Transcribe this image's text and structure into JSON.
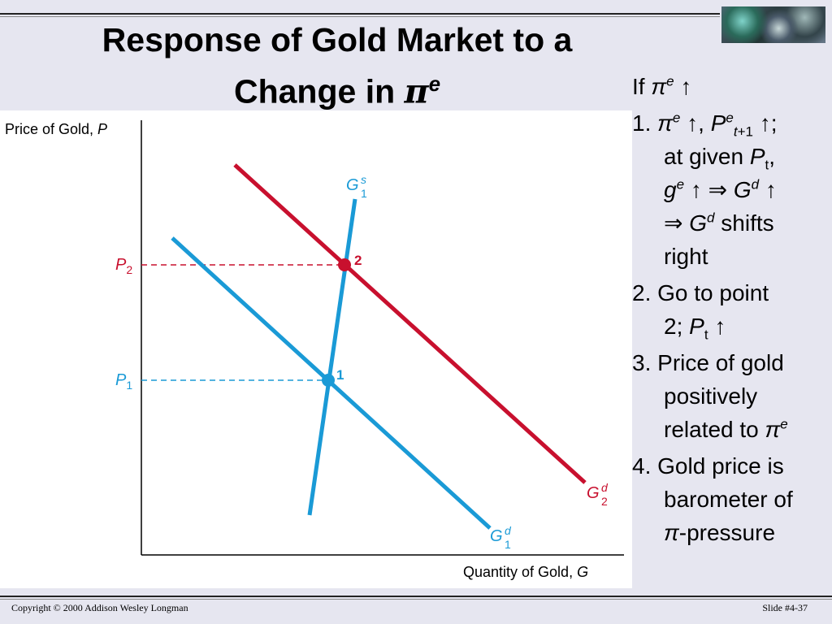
{
  "title": {
    "line1": "Response of Gold Market to a",
    "line2_text": "Change in ",
    "pi": "π",
    "sup": "e"
  },
  "diagram": {
    "y_axis_label": "Price of Gold, ",
    "y_axis_var": "P",
    "x_axis_label": "Quantity of Gold, ",
    "x_axis_var": "G",
    "supply_curve": {
      "base": "G",
      "sup": "s",
      "sub": "1"
    },
    "demand_curve_1": {
      "base": "G",
      "sup": "d",
      "sub": "1"
    },
    "demand_curve_2": {
      "base": "G",
      "sup": "d",
      "sub": "2"
    },
    "price_1": {
      "base": "P",
      "sub": "1"
    },
    "price_2": {
      "base": "P",
      "sub": "2"
    },
    "point_1_label": "1",
    "point_2_label": "2",
    "colors": {
      "blue": "#1a9ad6",
      "red": "#c8102e"
    }
  },
  "notes": {
    "intro_if": "If ",
    "intro_pi": "π",
    "intro_sup": "e",
    "intro_arrow": " ↑",
    "item1_num": "1.",
    "item1_pi": "π",
    "item1_sup_e": "e",
    "item1_arrow_comma": " ↑, ",
    "item1_P": "P",
    "item1_sup_e2": "e",
    "item1_sub_t1": "t",
    "item1_sub_plus1": "+1",
    "item1_arrow_semi": " ↑;",
    "item1_at_given": "at given  ",
    "item1_Pt": "P",
    "item1_sub_t": "t",
    "item1_comma": ",",
    "item1_g": "g",
    "item1_g_sup": "e",
    "item1_implies_G": " ↑ ⇒ ",
    "item1_G": "G",
    "item1_G_sup": "d",
    "item1_G_arrow": " ↑",
    "item1_implies2": "⇒ ",
    "item1_G2": "G",
    "item1_G2_sup": "d",
    "item1_shifts": " shifts",
    "item1_right": "right",
    "item2_num": "2.",
    "item2_text1": "Go to point",
    "item2_text2": "2; ",
    "item2_P": "P",
    "item2_sub": "t",
    "item2_arrow": " ↑",
    "item3_num": "3.",
    "item3_text1": "Price of gold",
    "item3_text2": "positively",
    "item3_text3": "related to ",
    "item3_pi": "π",
    "item3_sup": "e",
    "item4_num": "4.",
    "item4_text1": "Gold price is",
    "item4_text2": "barometer of",
    "item4_pi": "π",
    "item4_text3": "-pressure"
  },
  "footer": {
    "copyright": "Copyright © 2000 Addison Wesley Longman",
    "slide": "Slide #4-37"
  }
}
